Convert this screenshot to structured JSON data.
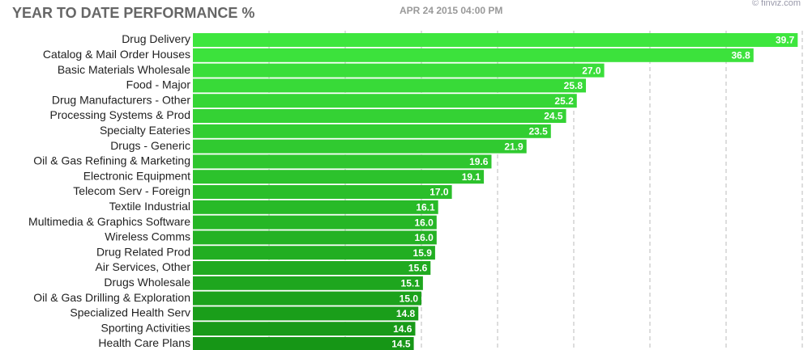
{
  "chart_data": {
    "type": "hbar",
    "title": "YEAR TO DATE PERFORMANCE %",
    "subtitle": "APR 24 2015 04:00 PM",
    "credit": "© finviz.com",
    "categories": [
      "Drug Delivery",
      "Catalog & Mail Order Houses",
      "Basic Materials Wholesale",
      "Food - Major",
      "Drug Manufacturers - Other",
      "Processing Systems & Prod",
      "Specialty Eateries",
      "Drugs - Generic",
      "Oil & Gas Refining & Marketing",
      "Electronic Equipment",
      "Telecom Serv - Foreign",
      "Textile Industrial",
      "Multimedia & Graphics Software",
      "Wireless Comms",
      "Drug Related Prod",
      "Air Services, Other",
      "Drugs Wholesale",
      "Oil & Gas Drilling & Exploration",
      "Specialized Health Serv",
      "Sporting Activities",
      "Health Care Plans"
    ],
    "values": [
      39.7,
      36.8,
      27.0,
      25.8,
      25.2,
      24.5,
      23.5,
      21.9,
      19.6,
      19.1,
      17.0,
      16.1,
      16.0,
      16.0,
      15.9,
      15.6,
      15.1,
      15.0,
      14.8,
      14.6,
      14.5
    ],
    "value_labels": [
      "39.7",
      "36.8",
      "27.0",
      "25.8",
      "25.2",
      "24.5",
      "23.5",
      "21.9",
      "19.6",
      "19.1",
      "17.0",
      "16.1",
      "16.0",
      "16.0",
      "15.9",
      "15.6",
      "15.1",
      "15.0",
      "14.8",
      "14.6",
      "14.5"
    ],
    "colors": [
      "#3ee63e",
      "#3ce23c",
      "#3ade3a",
      "#38da38",
      "#36d636",
      "#34d234",
      "#32ce32",
      "#30ca30",
      "#2ec62e",
      "#2cc22c",
      "#2abe2a",
      "#28ba28",
      "#26b626",
      "#24b224",
      "#22ae22",
      "#20aa20",
      "#1ea61e",
      "#1ca21c",
      "#1a9e1a",
      "#189a18",
      "#169616"
    ],
    "xlim": [
      0,
      40
    ],
    "xticks": [
      5,
      10,
      15,
      20,
      25,
      30,
      35,
      40
    ],
    "grid": true
  }
}
